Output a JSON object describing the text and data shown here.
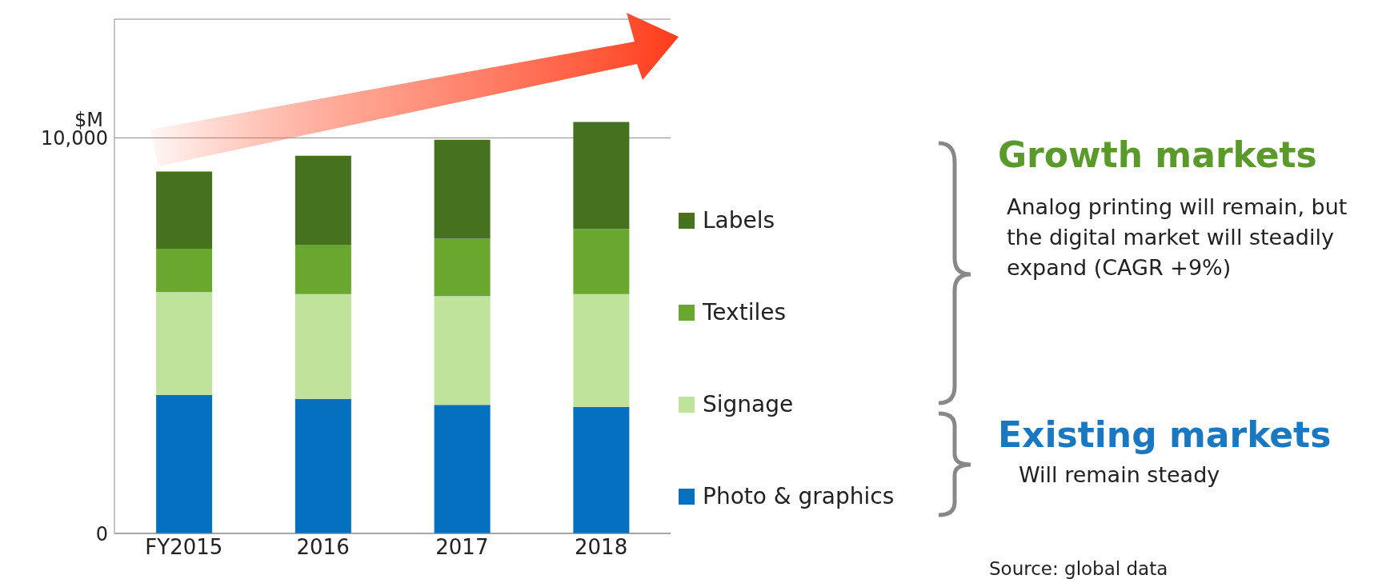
{
  "chart_data": {
    "type": "bar",
    "stacked": true,
    "categories": [
      "FY2015",
      "2016",
      "2017",
      "2018"
    ],
    "series": [
      {
        "name": "Photo & graphics",
        "color": "#0570c0",
        "values": [
          3500,
          3400,
          3250,
          3200
        ]
      },
      {
        "name": "Signage",
        "color": "#bfe39a",
        "values": [
          2600,
          2650,
          2750,
          2850
        ]
      },
      {
        "name": "Textiles",
        "color": "#6aa72e",
        "values": [
          1100,
          1250,
          1450,
          1650
        ]
      },
      {
        "name": "Labels",
        "color": "#46711f",
        "values": [
          1950,
          2250,
          2500,
          2700
        ]
      }
    ],
    "ylabel": "$M",
    "ylim": [
      0,
      13000
    ],
    "yticks": [
      0,
      {
        "value": 10000,
        "label": "10,000"
      }
    ],
    "grid": "y",
    "legend": "right",
    "annotations": [
      "Growth markets",
      "Analog printing will remain, but the digital market will steadily expand (CAGR +9%)",
      "Existing markets",
      "Will remain steady",
      "Source: global data"
    ]
  }
}
